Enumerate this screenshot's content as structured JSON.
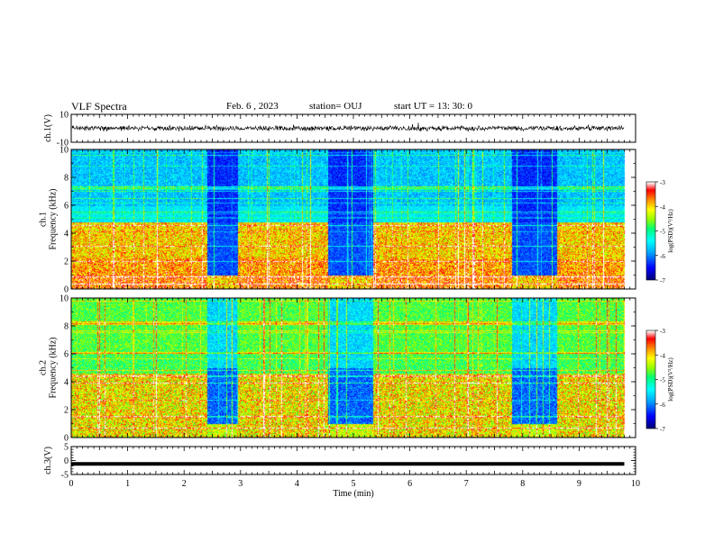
{
  "header": {
    "title": "VLF Spectra",
    "date": "Feb. 6 , 2023",
    "station": "station= OUJ",
    "start_ut": "start UT = 13: 30: 0"
  },
  "chart_data": [
    {
      "type": "line",
      "panel": "ch1-waveform",
      "ylabel": "ch.1(V)",
      "ylim": [
        -10,
        10
      ],
      "yticks": [
        "10",
        "-10"
      ],
      "x": [
        0,
        0.5,
        1,
        1.5,
        2,
        2.5,
        3,
        3.5,
        4,
        4.5,
        5,
        5.5,
        6,
        6.5,
        7,
        7.5,
        8,
        8.5,
        9,
        9.5,
        9.8
      ],
      "values": [
        0,
        0.3,
        -0.2,
        0.1,
        -0.3,
        0.2,
        -0.1,
        0.4,
        -0.5,
        0.2,
        0.1,
        -0.3,
        -0.2,
        0.2,
        -0.1,
        0.3,
        -0.2,
        0.1,
        0.2,
        -0.1,
        0
      ],
      "amplitude_note": "",
      "color": "#000000"
    },
    {
      "type": "heatmap",
      "panel": "ch1-spectrogram",
      "ylabel": "ch.1\nFrequency (kHz)",
      "ylim": [
        0,
        10
      ],
      "yticks": [
        "0",
        "2",
        "4",
        "6",
        "8",
        "10"
      ],
      "xlim": [
        0,
        9.8
      ],
      "colorbar": {
        "label": "log(PSD)(V²/Hz)",
        "range": [
          -7,
          -3
        ],
        "ticks": [
          "-3",
          "-4",
          "-5",
          "-6",
          "-7"
        ]
      },
      "quiet_intervals_min": [
        [
          2.4,
          2.95
        ],
        [
          4.55,
          5.35
        ],
        [
          7.8,
          8.6
        ]
      ]
    },
    {
      "type": "heatmap",
      "panel": "ch2-spectrogram",
      "ylabel": "ch.2\nFrequency (kHz)",
      "ylim": [
        0,
        10
      ],
      "yticks": [
        "0",
        "2",
        "4",
        "6",
        "8",
        "10"
      ],
      "xlim": [
        0,
        9.8
      ],
      "colorbar": {
        "label": "log(PSD)(V²/Hz)",
        "range": [
          -7,
          -3
        ],
        "ticks": [
          "-3",
          "-4",
          "-5",
          "-6",
          "-7"
        ]
      },
      "quiet_intervals_min": [
        [
          2.4,
          2.95
        ],
        [
          4.55,
          5.35
        ],
        [
          7.8,
          8.6
        ]
      ]
    },
    {
      "type": "line",
      "panel": "ch3-waveform",
      "ylabel": "ch.3(V)",
      "ylim": [
        -5,
        5
      ],
      "yticks": [
        "5",
        "0",
        "-5"
      ],
      "x": [
        0,
        9.8
      ],
      "values": [
        -1.2,
        -1.2
      ],
      "color": "#000000"
    }
  ],
  "xaxis": {
    "label": "Time (min)",
    "range": [
      0,
      10
    ],
    "ticks": [
      "0",
      "1",
      "2",
      "3",
      "4",
      "5",
      "6",
      "7",
      "8",
      "9",
      "10"
    ]
  },
  "colors": {
    "colormap": [
      "#00007f",
      "#0000ff",
      "#00bfff",
      "#00ffff",
      "#00ff7f",
      "#7fff00",
      "#ffff00",
      "#ff7f00",
      "#ff0000",
      "#ff4040",
      "#ffffff"
    ]
  }
}
